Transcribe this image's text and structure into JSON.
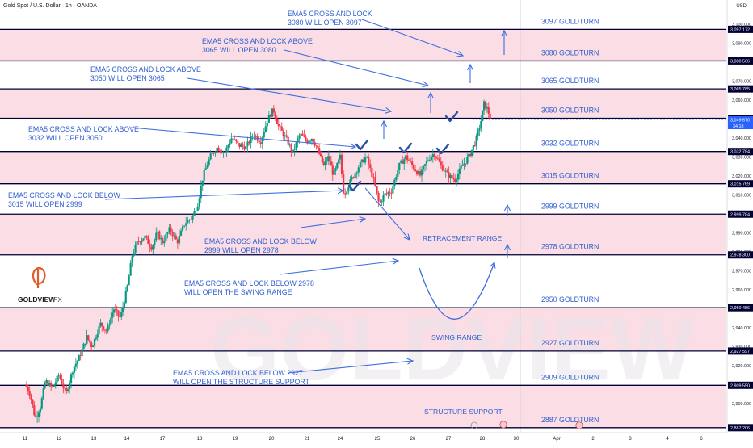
{
  "header": {
    "symbol_line": "Gold Spot / U.S. Dollar · 1h · OANDA",
    "currency": "USD"
  },
  "logo": {
    "mark": "G",
    "text": "GOLDVIEW",
    "suffix": "FX"
  },
  "watermark": "GOLDVIEW",
  "colors": {
    "band": "#f9d7e0",
    "line": "#000033",
    "annotation": "#3d6fe0",
    "label": "#2f5fd0",
    "candle_up": "#089981",
    "candle_down": "#f23645",
    "current_price_bg": "#2962ff",
    "logo": "#e05a2b"
  },
  "chart_data": {
    "type": "candlestick",
    "instrument": "Gold Spot / U.S. Dollar",
    "timeframe": "1h",
    "y_axis": {
      "range": [
        2885,
        3103
      ],
      "ticks": [
        2900,
        2910,
        2920,
        2930,
        2940,
        2950,
        2960,
        2970,
        2980,
        2990,
        3000,
        3010,
        3020,
        3030,
        3040,
        3050,
        3060,
        3070,
        3080,
        3090,
        3100
      ],
      "tick_labels": [
        "2,900.000",
        "2,910.000",
        "2,920.000",
        "2,930.000",
        "2,940.000",
        "2,950.000",
        "2,960.000",
        "2,970.000",
        "2,980.000",
        "2,990.000",
        "3,000.000",
        "3,010.000",
        "3,020.000",
        "3,030.000",
        "3,040.000",
        "3,050.000",
        "3,060.000",
        "3,070.000",
        "3,080.000",
        "3,090.000",
        "3,100.000"
      ]
    },
    "x_axis": {
      "labels": [
        {
          "text": "11",
          "i": 0
        },
        {
          "text": "12",
          "i": 1
        },
        {
          "text": "13",
          "i": 2
        },
        {
          "text": "14",
          "i": 3
        },
        {
          "text": "17",
          "i": 4
        },
        {
          "text": "18",
          "i": 5
        },
        {
          "text": "19",
          "i": 6
        },
        {
          "text": "20",
          "i": 7
        },
        {
          "text": "21",
          "i": 8
        },
        {
          "text": "24",
          "i": 9
        },
        {
          "text": "25",
          "i": 10
        },
        {
          "text": "26",
          "i": 11
        },
        {
          "text": "27",
          "i": 12
        },
        {
          "text": "28",
          "i": 13
        },
        {
          "text": "30",
          "i": 14
        },
        {
          "text": "Apr",
          "i": 15
        },
        {
          "text": "2",
          "i": 16
        },
        {
          "text": "3",
          "i": 17
        },
        {
          "text": "4",
          "i": 18
        },
        {
          "text": "6",
          "i": 19
        }
      ]
    },
    "levels": [
      {
        "value": 3097.172,
        "label": "3097 GOLDTURN",
        "axis_label": "3,097.172"
      },
      {
        "value": 3080.566,
        "label": "3080 GOLDTURN",
        "axis_label": "3,080.566"
      },
      {
        "value": 3065.785,
        "label": "3065 GOLDTURN",
        "axis_label": "3,065.785"
      },
      {
        "value": 3050.316,
        "label": "3050 GOLDTURN",
        "axis_label": "3,050.316"
      },
      {
        "value": 3032.784,
        "label": "3032 GOLDTURN",
        "axis_label": "3,032.784"
      },
      {
        "value": 3015.769,
        "label": "3015 GOLDTURN",
        "axis_label": "3,015.769"
      },
      {
        "value": 2999.784,
        "label": "2999 GOLDTURN",
        "axis_label": "2,999.784"
      },
      {
        "value": 2978.3,
        "label": "2978 GOLDTURN",
        "axis_label": "2,978.300"
      },
      {
        "value": 2950.456,
        "label": "2950 GOLDTURN",
        "axis_label": "2,950.456"
      },
      {
        "value": 2927.597,
        "label": "2927 GOLDTURN",
        "axis_label": "2,927.597"
      },
      {
        "value": 2909.55,
        "label": "2909 GOLDTURN",
        "axis_label": "2,909.550"
      },
      {
        "value": 2887.206,
        "label": "2887 GOLDTURN",
        "axis_label": "2,887.206"
      }
    ],
    "bands": [
      [
        3080.566,
        3097.172
      ],
      [
        3050.316,
        3065.785
      ],
      [
        3015.769,
        3032.784
      ],
      [
        2978.3,
        2999.784
      ],
      [
        2927.597,
        2950.456
      ],
      [
        2887.206,
        2909.55
      ]
    ],
    "current_price": {
      "value": 3049.67,
      "label": "3,049.670",
      "countdown": "34:18"
    },
    "annotations": [
      {
        "lines": [
          "EMA5 CROSS AND LOCK",
          "3080 WILL OPEN 3097"
        ]
      },
      {
        "lines": [
          "EMA5 CROSS AND LOCK ABOVE",
          "3065 WILL OPEN 3080"
        ]
      },
      {
        "lines": [
          "EMA5 CROSS AND LOCK ABOVE",
          "3050 WILL OPEN 3065"
        ]
      },
      {
        "lines": [
          "EMA5 CROSS AND LOCK ABOVE",
          "3032 WILL OPEN 3050"
        ]
      },
      {
        "lines": [
          "EMA5 CROSS AND LOCK BELOW",
          "3015 WILL OPEN 2999"
        ]
      },
      {
        "lines": [
          "EMA5 CROSS AND LOCK BELOW",
          "2999 WILL OPEN 2978"
        ]
      },
      {
        "lines": [
          "EMA5 CROSS AND LOCK BELOW 2978",
          "WILL OPEN THE SWING RANGE"
        ]
      },
      {
        "lines": [
          "EMA5 CROSS AND LOCK BELOW 2927",
          "WILL OPEN THE STRUCTURE SUPPORT"
        ]
      }
    ],
    "zone_labels": [
      "RETRACEMENT RANGE",
      "SWING RANGE",
      "STRUCTURE SUPPORT"
    ],
    "price_path": [
      [
        0,
        2910
      ],
      [
        0.15,
        2905
      ],
      [
        0.3,
        2892
      ],
      [
        0.45,
        2898
      ],
      [
        0.6,
        2912
      ],
      [
        0.8,
        2908
      ],
      [
        1,
        2915
      ],
      [
        1.2,
        2905
      ],
      [
        1.4,
        2918
      ],
      [
        1.6,
        2925
      ],
      [
        1.8,
        2935
      ],
      [
        1.95,
        2930
      ],
      [
        2.2,
        2942
      ],
      [
        2.4,
        2938
      ],
      [
        2.6,
        2950
      ],
      [
        2.8,
        2945
      ],
      [
        3,
        2960
      ],
      [
        3.15,
        2978
      ],
      [
        3.3,
        2985
      ],
      [
        3.5,
        2988
      ],
      [
        3.7,
        2982
      ],
      [
        3.85,
        2990
      ],
      [
        4,
        2985
      ],
      [
        4.2,
        2992
      ],
      [
        4.4,
        2985
      ],
      [
        4.6,
        2995
      ],
      [
        4.8,
        2998
      ],
      [
        4.95,
        3005
      ],
      [
        5.1,
        3020
      ],
      [
        5.3,
        3030
      ],
      [
        5.5,
        3035
      ],
      [
        5.7,
        3032
      ],
      [
        5.9,
        3040
      ],
      [
        6.1,
        3036
      ],
      [
        6.3,
        3035
      ],
      [
        6.5,
        3042
      ],
      [
        6.7,
        3038
      ],
      [
        6.9,
        3050
      ],
      [
        7.05,
        3055
      ],
      [
        7.2,
        3046
      ],
      [
        7.4,
        3040
      ],
      [
        7.6,
        3032
      ],
      [
        7.8,
        3042
      ],
      [
        8,
        3038
      ],
      [
        8.15,
        3040
      ],
      [
        8.3,
        3035
      ],
      [
        8.5,
        3025
      ],
      [
        8.65,
        3030
      ],
      [
        8.8,
        3020
      ],
      [
        9,
        3030
      ],
      [
        9.1,
        3010
      ],
      [
        9.3,
        3018
      ],
      [
        9.5,
        3025
      ],
      [
        9.7,
        3030
      ],
      [
        9.9,
        3018
      ],
      [
        10.05,
        3005
      ],
      [
        10.2,
        3010
      ],
      [
        10.4,
        3012
      ],
      [
        10.6,
        3025
      ],
      [
        10.8,
        3030
      ],
      [
        11,
        3025
      ],
      [
        11.2,
        3020
      ],
      [
        11.4,
        3028
      ],
      [
        11.6,
        3032
      ],
      [
        11.8,
        3025
      ],
      [
        12,
        3020
      ],
      [
        12.2,
        3018
      ],
      [
        12.4,
        3025
      ],
      [
        12.6,
        3030
      ],
      [
        12.8,
        3038
      ],
      [
        12.95,
        3048
      ],
      [
        13.05,
        3058
      ],
      [
        13.15,
        3055
      ],
      [
        13.25,
        3049.67
      ]
    ]
  }
}
